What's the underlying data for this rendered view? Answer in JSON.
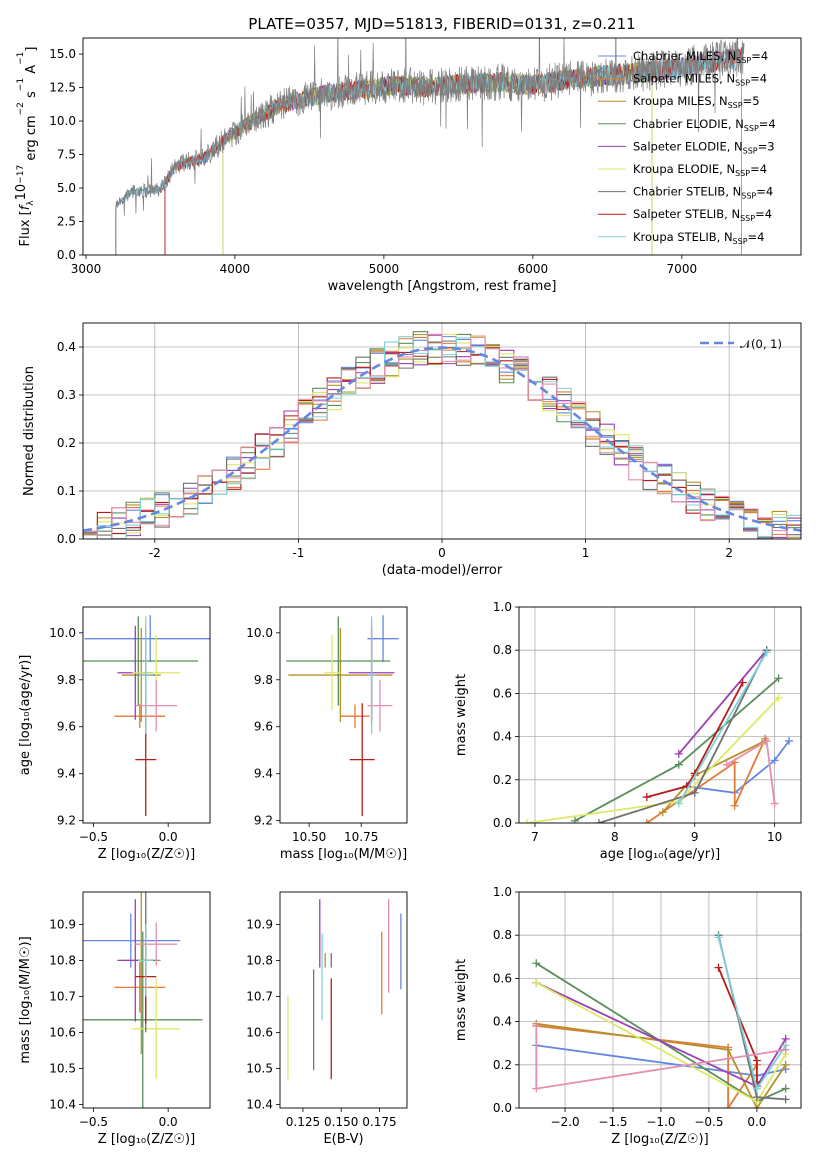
{
  "colors": [
    "#6687e0",
    "#e07b39",
    "#b5912b",
    "#5a8f5a",
    "#9b3fb5",
    "#dde86a",
    "#707070",
    "#b71c1c",
    "#7fd1d8",
    "#e58fb0"
  ],
  "chart_data": [
    {
      "id": "spectrum",
      "type": "line",
      "title": "PLATE=0357, MJD=51813, FIBERID=0131, z=0.211",
      "xlabel": "wavelength [Angstrom, rest frame]",
      "ylabel_parts": [
        "Flux [",
        "f",
        "λ",
        "10",
        "−17",
        " erg cm",
        "−2",
        " s",
        "−1",
        " A",
        "−1",
        "]"
      ],
      "xlim": [
        2980,
        7800
      ],
      "ylim": [
        0,
        16.2
      ],
      "xticks": [
        3000,
        4000,
        5000,
        6000,
        7000
      ],
      "yticks": [
        0.0,
        2.5,
        5.0,
        7.5,
        10.0,
        12.5,
        15.0
      ],
      "legend_position": "upper-right",
      "series": [
        {
          "name": "Chabrier MILES",
          "nssp": "4"
        },
        {
          "name": "Salpeter MILES",
          "nssp": "4"
        },
        {
          "name": "Kroupa MILES",
          "nssp": "5"
        },
        {
          "name": "Chabrier ELODIE",
          "nssp": "4"
        },
        {
          "name": "Salpeter ELODIE",
          "nssp": "3"
        },
        {
          "name": "Kroupa ELODIE",
          "nssp": "4"
        },
        {
          "name": "Chabrier STELIB",
          "nssp": "4"
        },
        {
          "name": "Salpeter STELIB",
          "nssp": "4"
        },
        {
          "name": "Kroupa STELIB",
          "nssp": "4"
        }
      ],
      "nssp_label": "N",
      "nssp_sub": "SSP",
      "model_start": [
        3200,
        3530,
        3920,
        3920,
        3530,
        3920,
        3200,
        3530,
        3200
      ],
      "model_end": [
        7400,
        7400,
        6800,
        6800,
        7400,
        6800,
        7400,
        7400,
        7400
      ],
      "shape": [
        [
          3200,
          3.6
        ],
        [
          3300,
          4.7
        ],
        [
          3500,
          4.9
        ],
        [
          3600,
          6.6
        ],
        [
          3800,
          7.3
        ],
        [
          3950,
          8.8
        ],
        [
          4100,
          9.9
        ],
        [
          4300,
          11.2
        ],
        [
          4500,
          11.8
        ],
        [
          4700,
          12.2
        ],
        [
          4900,
          12.4
        ],
        [
          5100,
          12.7
        ],
        [
          5300,
          12.5
        ],
        [
          5500,
          12.8
        ],
        [
          5800,
          12.9
        ],
        [
          6000,
          12.7
        ],
        [
          6300,
          13.2
        ],
        [
          6600,
          13.5
        ],
        [
          6800,
          13.7
        ],
        [
          7000,
          14.0
        ],
        [
          7200,
          14.4
        ],
        [
          7400,
          14.7
        ]
      ]
    },
    {
      "id": "residuals",
      "type": "histogram",
      "xlabel": "(data-model)/error",
      "ylabel": "Normed distribution",
      "xlim": [
        -2.5,
        2.5
      ],
      "ylim": [
        0,
        0.45
      ],
      "xticks": [
        -2,
        -1,
        0,
        1,
        2
      ],
      "yticks": [
        0.0,
        0.1,
        0.2,
        0.3,
        0.4
      ],
      "legend": "𝒩(0, 1)",
      "legend_position": "upper-right",
      "grid": true
    },
    {
      "id": "age_vs_Z",
      "type": "errorbar",
      "xlabel": "Z [log₁₀(Z/Z☉)]",
      "ylabel": "age  [log₁₀(age/yr)]",
      "xlim": [
        -0.57,
        0.28
      ],
      "ylim": [
        9.19,
        10.11
      ],
      "xticks": [
        -0.5,
        0.0
      ],
      "xtick_labels": [
        "−0.5",
        "0.0"
      ],
      "yticks": [
        9.2,
        9.4,
        9.6,
        9.8,
        10.0
      ],
      "points": [
        {
          "x": -0.12,
          "xerr": 0.44,
          "y": 9.975,
          "yerr": 0.1
        },
        {
          "x": -0.19,
          "xerr": 0.17,
          "y": 9.645,
          "yerr": 0.05
        },
        {
          "x": -0.18,
          "xerr": 0.13,
          "y": 9.82,
          "yerr": 0.2
        },
        {
          "x": -0.2,
          "xerr": 0.4,
          "y": 9.88,
          "yerr": 0.19
        },
        {
          "x": -0.22,
          "xerr": 0.12,
          "y": 9.83,
          "yerr": 0.2
        },
        {
          "x": -0.08,
          "xerr": 0.16,
          "y": 9.83,
          "yerr": 0.16
        },
        {
          "x": -0.15,
          "xerr": 0.06,
          "y": 9.82,
          "yerr": 0.2
        },
        {
          "x": -0.15,
          "xerr": 0.07,
          "y": 9.46,
          "yerr": 0.24
        },
        {
          "x": -0.15,
          "xerr": 0.05,
          "y": 9.82,
          "yerr": 0.25
        },
        {
          "x": -0.08,
          "xerr": 0.14,
          "y": 9.69,
          "yerr": 0.11
        }
      ]
    },
    {
      "id": "age_vs_mass",
      "type": "errorbar",
      "xlabel": "mass [log₁₀(M/M☉)]",
      "xlim": [
        10.36,
        10.97
      ],
      "ylim": [
        9.19,
        10.11
      ],
      "xticks": [
        10.5,
        10.75
      ],
      "xtick_labels": [
        "10.50",
        "10.75"
      ],
      "yticks": [
        9.2,
        9.4,
        9.6,
        9.8,
        10.0
      ],
      "points": [
        {
          "x": 10.855,
          "xerr": 0.075,
          "y": 9.975,
          "yerr": 0.1
        },
        {
          "x": 10.72,
          "xerr": 0.07,
          "y": 9.645,
          "yerr": 0.05
        },
        {
          "x": 10.65,
          "xerr": 0.25,
          "y": 9.82,
          "yerr": 0.2
        },
        {
          "x": 10.64,
          "xerr": 0.25,
          "y": 9.88,
          "yerr": 0.19
        },
        {
          "x": 10.8,
          "xerr": 0.11,
          "y": 9.83,
          "yerr": 0.2
        },
        {
          "x": 10.61,
          "xerr": 0.04,
          "y": 9.83,
          "yerr": 0.16
        },
        {
          "x": 10.8,
          "xerr": 0.02,
          "y": 9.82,
          "yerr": 0.2
        },
        {
          "x": 10.755,
          "xerr": 0.06,
          "y": 9.46,
          "yerr": 0.24
        },
        {
          "x": 10.8,
          "xerr": 0.02,
          "y": 9.82,
          "yerr": 0.25
        },
        {
          "x": 10.84,
          "xerr": 0.06,
          "y": 9.69,
          "yerr": 0.11
        }
      ]
    },
    {
      "id": "weight_vs_age",
      "type": "line",
      "xlabel": "age  [log₁₀(age/yr)]",
      "ylabel": "mass weight",
      "xlim": [
        6.8,
        10.33
      ],
      "ylim": [
        0,
        1
      ],
      "xticks": [
        7,
        8,
        9,
        10
      ],
      "yticks": [
        0.0,
        0.2,
        0.4,
        0.6,
        0.8,
        1.0
      ],
      "grid": true,
      "series": [
        {
          "x": [
            8.9,
            9.5,
            10.0,
            10.18
          ],
          "y": [
            0.17,
            0.14,
            0.29,
            0.38
          ]
        },
        {
          "x": [
            8.4,
            9.5,
            9.5,
            9.88
          ],
          "y": [
            0.0,
            0.28,
            0.08,
            0.39
          ]
        },
        {
          "x": [
            8.6,
            9.0,
            9.88
          ],
          "y": [
            0.05,
            0.22,
            0.38
          ]
        },
        {
          "x": [
            7.5,
            8.8,
            10.05
          ],
          "y": [
            0.01,
            0.27,
            0.67
          ]
        },
        {
          "x": [
            8.8,
            9.9
          ],
          "y": [
            0.32,
            0.8
          ]
        },
        {
          "x": [
            6.9,
            8.8,
            10.05
          ],
          "y": [
            0.0,
            0.1,
            0.58
          ]
        },
        {
          "x": [
            7.8,
            9.0,
            9.9
          ],
          "y": [
            0.0,
            0.14,
            0.8
          ]
        },
        {
          "x": [
            8.4,
            8.9,
            9.0,
            9.6
          ],
          "y": [
            0.12,
            0.17,
            0.23,
            0.65
          ]
        },
        {
          "x": [
            8.8,
            9.9
          ],
          "y": [
            0.09,
            0.79
          ]
        },
        {
          "x": [
            9.4,
            9.9,
            10.0
          ],
          "y": [
            0.27,
            0.38,
            0.09
          ]
        }
      ]
    },
    {
      "id": "mass_vs_Z",
      "type": "errorbar",
      "xlabel": "Z [log₁₀(Z/Z☉)]",
      "ylabel": "mass [log₁₀(M/M☉)]",
      "xlim": [
        -0.57,
        0.28
      ],
      "ylim": [
        10.39,
        10.99
      ],
      "xticks": [
        -0.5,
        0.0
      ],
      "xtick_labels": [
        "−0.5",
        "0.0"
      ],
      "yticks": [
        10.4,
        10.5,
        10.6,
        10.7,
        10.8,
        10.9
      ],
      "points": [
        {
          "x": -0.25,
          "xerr": 0.33,
          "y": 10.855,
          "yerr": 0.075
        },
        {
          "x": -0.19,
          "xerr": 0.17,
          "y": 10.725,
          "yerr": 0.07
        },
        {
          "x": -0.18,
          "xerr": 0.13,
          "y": 10.8,
          "yerr": 0.26
        },
        {
          "x": -0.17,
          "xerr": 0.4,
          "y": 10.635,
          "yerr": 0.245
        },
        {
          "x": -0.22,
          "xerr": 0.12,
          "y": 10.8,
          "yerr": 0.17
        },
        {
          "x": -0.08,
          "xerr": 0.16,
          "y": 10.61,
          "yerr": 0.14
        },
        {
          "x": -0.15,
          "xerr": 0.06,
          "y": 10.8,
          "yerr": 0.2
        },
        {
          "x": -0.15,
          "xerr": 0.07,
          "y": 10.755,
          "yerr": 0.13
        },
        {
          "x": -0.15,
          "xerr": 0.05,
          "y": 10.8,
          "yerr": 0.1
        },
        {
          "x": -0.08,
          "xerr": 0.14,
          "y": 10.845,
          "yerr": 0.06
        }
      ]
    },
    {
      "id": "mass_vs_EBV",
      "type": "errorbar",
      "xlabel": "E(B-V)",
      "xlim": [
        0.11,
        0.193
      ],
      "ylim": [
        10.39,
        10.99
      ],
      "xticks": [
        0.125,
        0.15,
        0.175
      ],
      "xtick_labels": [
        "0.125",
        "0.150",
        "0.175"
      ],
      "yticks": [
        10.4,
        10.5,
        10.6,
        10.7,
        10.8,
        10.9
      ],
      "points": [
        {
          "x": 0.189,
          "xerr": 0,
          "y": 10.825,
          "yerr": 0.105
        },
        {
          "x": 0.1765,
          "xerr": 0,
          "y": 10.765,
          "yerr": 0.115
        },
        {
          "x": 0.1395,
          "xerr": 0,
          "y": 10.8,
          "yerr": 0.02
        },
        {
          "x": 0.132,
          "xerr": 0,
          "y": 10.635,
          "yerr": 0.14
        },
        {
          "x": 0.136,
          "xerr": 0,
          "y": 10.875,
          "yerr": 0.095
        },
        {
          "x": 0.1152,
          "xerr": 0,
          "y": 10.585,
          "yerr": 0.115
        },
        {
          "x": 0.1435,
          "xerr": 0,
          "y": 10.8,
          "yerr": 0.02
        },
        {
          "x": 0.1435,
          "xerr": 0,
          "y": 10.61,
          "yerr": 0.14
        },
        {
          "x": 0.1375,
          "xerr": 0,
          "y": 10.755,
          "yerr": 0.12
        },
        {
          "x": 0.181,
          "xerr": 0,
          "y": 10.84,
          "yerr": 0.13
        }
      ]
    },
    {
      "id": "weight_vs_Z",
      "type": "line",
      "xlabel": "Z [log₁₀(Z/Z☉)]",
      "ylabel": "mass weight",
      "xlim": [
        -2.48,
        0.46
      ],
      "ylim": [
        0,
        1
      ],
      "xticks": [
        -2.0,
        -1.5,
        -1.0,
        -0.5,
        0.0
      ],
      "xtick_labels": [
        "−2.0",
        "−1.5",
        "−1.0",
        "−0.5",
        "0.0"
      ],
      "yticks": [
        0.0,
        0.2,
        0.4,
        0.6,
        0.8,
        1.0
      ],
      "grid": true,
      "series": [
        {
          "x": [
            -2.3,
            0.0,
            0.3
          ],
          "y": [
            0.29,
            0.15,
            0.18
          ]
        },
        {
          "x": [
            -2.3,
            -0.3,
            -0.3,
            0.0
          ],
          "y": [
            0.38,
            0.28,
            0.0,
            0.2
          ]
        },
        {
          "x": [
            -2.3,
            -0.3,
            0.0,
            0.3
          ],
          "y": [
            0.39,
            0.27,
            0.0,
            0.2
          ]
        },
        {
          "x": [
            -2.3,
            0.0,
            0.3
          ],
          "y": [
            0.67,
            0.03,
            0.09
          ]
        },
        {
          "x": [
            -2.3,
            0.0,
            0.3
          ],
          "y": [
            0.58,
            0.1,
            0.32
          ]
        },
        {
          "x": [
            -2.3,
            0.0,
            0.3
          ],
          "y": [
            0.58,
            0.03,
            0.25
          ]
        },
        {
          "x": [
            -0.4,
            0.0,
            0.3
          ],
          "y": [
            0.8,
            0.05,
            0.04
          ]
        },
        {
          "x": [
            -0.4,
            0.0,
            0.0
          ],
          "y": [
            0.65,
            0.22,
            0.12
          ]
        },
        {
          "x": [
            -0.4,
            0.0,
            0.3
          ],
          "y": [
            0.79,
            0.09,
            0.29
          ]
        },
        {
          "x": [
            -2.3,
            -2.3,
            0.3
          ],
          "y": [
            0.38,
            0.09,
            0.27
          ]
        }
      ]
    }
  ]
}
